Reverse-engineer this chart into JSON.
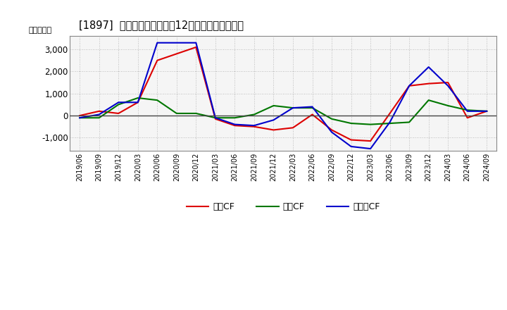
{
  "title": "[1897]  キャッシュフローの12か月移動合計の推移",
  "ylabel": "（百万円）",
  "background_color": "#ffffff",
  "plot_bg_color": "#f5f5f5",
  "grid_color": "#aaaaaa",
  "x_labels": [
    "2019/06",
    "2019/09",
    "2019/12",
    "2020/03",
    "2020/06",
    "2020/09",
    "2020/12",
    "2021/03",
    "2021/06",
    "2021/09",
    "2021/12",
    "2022/03",
    "2022/06",
    "2022/09",
    "2022/12",
    "2023/03",
    "2023/06",
    "2023/09",
    "2023/12",
    "2024/03",
    "2024/06",
    "2024/09"
  ],
  "営業CF": [
    0,
    200,
    100,
    600,
    2500,
    2800,
    3100,
    -150,
    -450,
    -500,
    -650,
    -550,
    50,
    -650,
    -1100,
    -1150,
    100,
    1350,
    1450,
    1500,
    -100,
    200
  ],
  "投賃CF": [
    -100,
    -100,
    500,
    800,
    700,
    100,
    100,
    -100,
    -100,
    50,
    450,
    350,
    350,
    -150,
    -350,
    -400,
    -350,
    -300,
    700,
    450,
    250,
    200
  ],
  "フリーCF": [
    -100,
    50,
    600,
    600,
    3300,
    3300,
    3300,
    -100,
    -400,
    -450,
    -200,
    350,
    400,
    -750,
    -1400,
    -1500,
    -300,
    1350,
    2200,
    1350,
    200,
    200
  ],
  "ylim": [
    -1600,
    3600
  ],
  "yticks": [
    -1000,
    0,
    1000,
    2000,
    3000
  ],
  "line_colors": {
    "営業CF": "#dd0000",
    "投賃CF": "#007700",
    "フリーCF": "#0000cc"
  },
  "legend_labels": [
    "営業CF",
    "投賃CF",
    "フリーCF"
  ]
}
